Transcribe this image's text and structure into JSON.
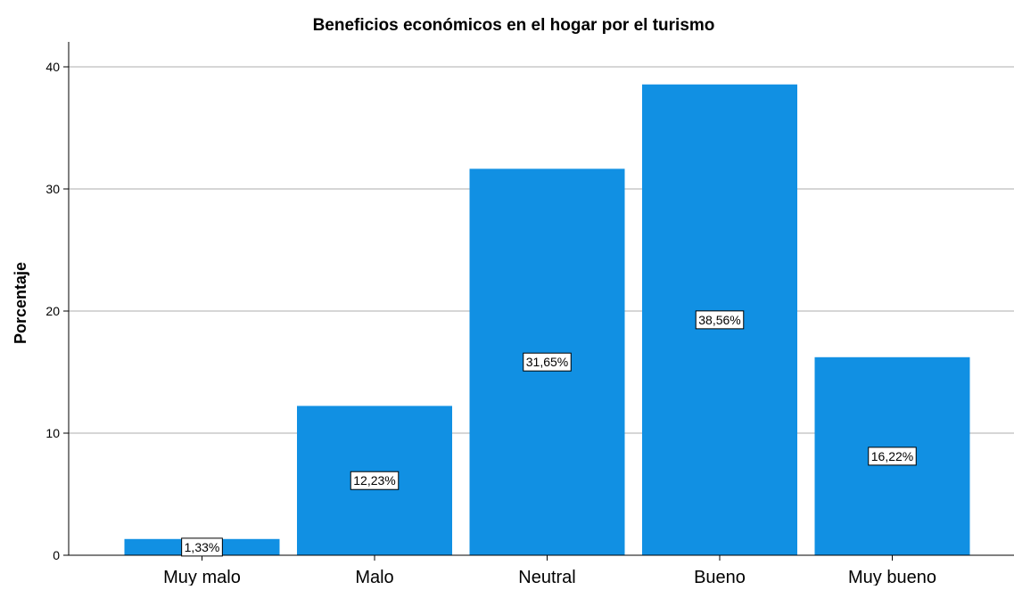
{
  "chart_data": {
    "type": "bar",
    "title": "Beneficios económicos en el hogar por el turismo",
    "xlabel": "",
    "ylabel": "Porcentaje",
    "categories": [
      "Muy malo",
      "Malo",
      "Neutral",
      "Bueno",
      "Muy bueno"
    ],
    "values": [
      1.33,
      12.23,
      31.65,
      38.56,
      16.22
    ],
    "data_labels": [
      "1,33%",
      "12,23%",
      "31,65%",
      "38,56%",
      "16,22%"
    ],
    "ylim": [
      0,
      40
    ],
    "yticks": [
      0,
      10,
      20,
      30,
      40
    ],
    "grid": true,
    "legend": "none",
    "bar_color": "#1190e3",
    "grid_color": "#c8c8c8"
  }
}
